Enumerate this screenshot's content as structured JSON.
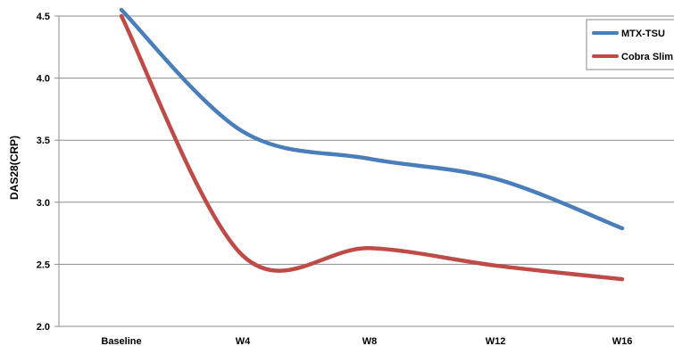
{
  "chart_data": {
    "type": "line",
    "title": "",
    "xlabel": "",
    "ylabel": "DAS28(CRP)",
    "categories": [
      "Baseline",
      "W4",
      "W8",
      "W12",
      "W16"
    ],
    "series": [
      {
        "name": "MTX-TSU",
        "color": "#4a7ebb",
        "values": [
          4.55,
          3.57,
          3.35,
          3.19,
          2.79
        ]
      },
      {
        "name": "Cobra Slim",
        "color": "#be4b48",
        "values": [
          4.5,
          2.57,
          2.63,
          2.49,
          2.38
        ]
      }
    ],
    "ylim": [
      2.0,
      4.5
    ],
    "yticks": [
      "2.0",
      "2.5",
      "3.0",
      "3.5",
      "4.0",
      "4.5"
    ],
    "grid": true,
    "legend_position": "top-right",
    "smooth": true
  }
}
